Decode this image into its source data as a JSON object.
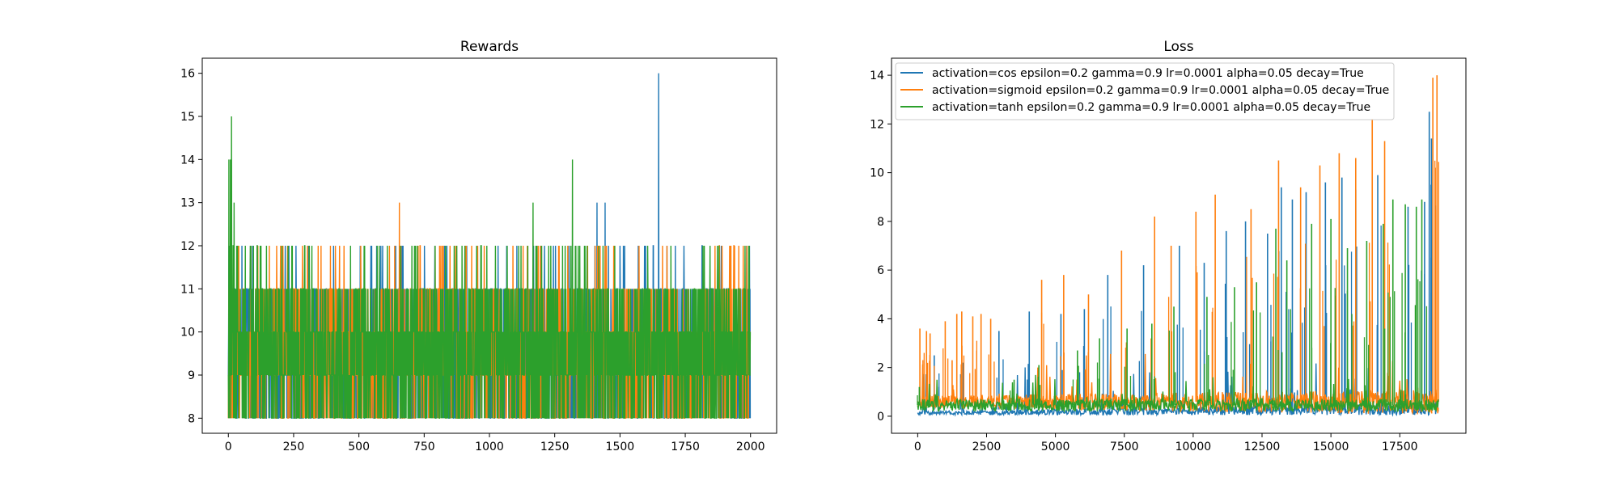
{
  "colors": {
    "cos": "#1f77b4",
    "sigmoid": "#ff7f0e",
    "tanh": "#2ca02c"
  },
  "chart_data": [
    {
      "type": "line",
      "title": "Rewards",
      "xlim": [
        -100,
        2100
      ],
      "ylim": [
        7.65,
        16.35
      ],
      "x_ticks": [
        0,
        250,
        500,
        750,
        1000,
        1250,
        1500,
        1750,
        2000
      ],
      "y_ticks": [
        8,
        9,
        10,
        11,
        12,
        13,
        14,
        15,
        16
      ],
      "n_points": 2000,
      "series": [
        {
          "key": "cos",
          "values_range": [
            8,
            16
          ],
          "peaks": [
            {
              "x": 1648,
              "y": 16
            },
            {
              "x": 1412,
              "y": 13
            },
            {
              "x": 1443,
              "y": 13
            },
            {
              "x": 1305,
              "y": 12
            },
            {
              "x": 1513,
              "y": 12
            },
            {
              "x": 1598,
              "y": 12
            },
            {
              "x": 1712,
              "y": 12
            },
            {
              "x": 1985,
              "y": 12
            }
          ]
        },
        {
          "key": "sigmoid",
          "values_range": [
            8,
            13
          ],
          "peaks": [
            {
              "x": 655,
              "y": 13
            },
            {
              "x": 40,
              "y": 12
            },
            {
              "x": 410,
              "y": 12
            },
            {
              "x": 955,
              "y": 12
            },
            {
              "x": 1405,
              "y": 12
            },
            {
              "x": 1920,
              "y": 12
            }
          ]
        },
        {
          "key": "tanh",
          "values_range": [
            8,
            15
          ],
          "peaks": [
            {
              "x": 2,
              "y": 14
            },
            {
              "x": 8,
              "y": 14
            },
            {
              "x": 12,
              "y": 15
            },
            {
              "x": 22,
              "y": 13
            },
            {
              "x": 1167,
              "y": 13
            },
            {
              "x": 1318,
              "y": 14
            },
            {
              "x": 35,
              "y": 12
            },
            {
              "x": 520,
              "y": 12
            },
            {
              "x": 875,
              "y": 12
            },
            {
              "x": 1845,
              "y": 12
            },
            {
              "x": 1995,
              "y": 12
            }
          ]
        }
      ]
    },
    {
      "type": "line",
      "title": "Loss",
      "xlim": [
        -950,
        19900
      ],
      "ylim": [
        -0.7,
        14.7
      ],
      "x_ticks": [
        0,
        2500,
        5000,
        7500,
        10000,
        12500,
        15000,
        17500
      ],
      "y_ticks": [
        0,
        2,
        4,
        6,
        8,
        10,
        12,
        14
      ],
      "n_points": 18900,
      "legend": {
        "location": "upper left",
        "entries": [
          {
            "key": "cos",
            "label": "activation=cos epsilon=0.2 gamma=0.9 lr=0.0001 alpha=0.05 decay=True"
          },
          {
            "key": "sigmoid",
            "label": "activation=sigmoid epsilon=0.2 gamma=0.9 lr=0.0001 alpha=0.05 decay=True"
          },
          {
            "key": "tanh",
            "label": "activation=tanh epsilon=0.2 gamma=0.9 lr=0.0001 alpha=0.05 decay=True"
          }
        ]
      },
      "series": [
        {
          "key": "cos",
          "name": "activation=cos epsilon=0.2 gamma=0.9 lr=0.0001 alpha=0.05 decay=True",
          "baseline": [
            0.1,
            0.45
          ],
          "peaks": [
            {
              "x": 600,
              "y": 2.5
            },
            {
              "x": 1650,
              "y": 2.2
            },
            {
              "x": 2950,
              "y": 3.5
            },
            {
              "x": 4050,
              "y": 4.3
            },
            {
              "x": 5200,
              "y": 4.2
            },
            {
              "x": 6050,
              "y": 4.4
            },
            {
              "x": 6900,
              "y": 5.8
            },
            {
              "x": 8200,
              "y": 6.2
            },
            {
              "x": 9500,
              "y": 7.0
            },
            {
              "x": 10400,
              "y": 6.3
            },
            {
              "x": 11200,
              "y": 7.6
            },
            {
              "x": 11900,
              "y": 8.0
            },
            {
              "x": 12700,
              "y": 7.5
            },
            {
              "x": 13200,
              "y": 9.4
            },
            {
              "x": 13600,
              "y": 8.9
            },
            {
              "x": 14100,
              "y": 9.2
            },
            {
              "x": 14800,
              "y": 9.6
            },
            {
              "x": 15400,
              "y": 9.8
            },
            {
              "x": 15900,
              "y": 9.3
            },
            {
              "x": 16700,
              "y": 9.9
            },
            {
              "x": 17800,
              "y": 8.6
            },
            {
              "x": 18400,
              "y": 8.8
            },
            {
              "x": 18570,
              "y": 12.5
            },
            {
              "x": 18650,
              "y": 11.4
            }
          ]
        },
        {
          "key": "sigmoid",
          "name": "activation=sigmoid epsilon=0.2 gamma=0.9 lr=0.0001 alpha=0.05 decay=True",
          "baseline": [
            0.0,
            1.2
          ],
          "peaks": [
            {
              "x": 80,
              "y": 3.6
            },
            {
              "x": 320,
              "y": 3.5
            },
            {
              "x": 450,
              "y": 3.4
            },
            {
              "x": 1000,
              "y": 3.9
            },
            {
              "x": 1250,
              "y": 2.3
            },
            {
              "x": 1420,
              "y": 4.2
            },
            {
              "x": 1600,
              "y": 4.3
            },
            {
              "x": 2000,
              "y": 4.1
            },
            {
              "x": 2300,
              "y": 4.2
            },
            {
              "x": 2650,
              "y": 4.0
            },
            {
              "x": 4500,
              "y": 5.6
            },
            {
              "x": 5300,
              "y": 5.8
            },
            {
              "x": 6200,
              "y": 5.0
            },
            {
              "x": 7400,
              "y": 6.8
            },
            {
              "x": 8600,
              "y": 8.2
            },
            {
              "x": 9200,
              "y": 7.0
            },
            {
              "x": 10100,
              "y": 8.4
            },
            {
              "x": 10800,
              "y": 9.1
            },
            {
              "x": 12100,
              "y": 8.5
            },
            {
              "x": 13100,
              "y": 10.5
            },
            {
              "x": 13900,
              "y": 9.4
            },
            {
              "x": 14600,
              "y": 10.3
            },
            {
              "x": 15300,
              "y": 10.8
            },
            {
              "x": 15900,
              "y": 10.6
            },
            {
              "x": 16500,
              "y": 12.2
            },
            {
              "x": 16950,
              "y": 11.3
            },
            {
              "x": 18700,
              "y": 13.9
            },
            {
              "x": 18850,
              "y": 14.0
            }
          ]
        },
        {
          "key": "tanh",
          "name": "activation=tanh epsilon=0.2 gamma=0.9 lr=0.0001 alpha=0.05 decay=True",
          "baseline": [
            0.2,
            0.7
          ],
          "peaks": [
            {
              "x": 60,
              "y": 1.2
            },
            {
              "x": 3500,
              "y": 1.5
            },
            {
              "x": 4400,
              "y": 2.1
            },
            {
              "x": 5800,
              "y": 2.7
            },
            {
              "x": 6600,
              "y": 3.2
            },
            {
              "x": 7600,
              "y": 3.6
            },
            {
              "x": 8500,
              "y": 3.8
            },
            {
              "x": 9300,
              "y": 4.5
            },
            {
              "x": 10500,
              "y": 4.9
            },
            {
              "x": 11500,
              "y": 5.3
            },
            {
              "x": 12300,
              "y": 5.5
            },
            {
              "x": 13000,
              "y": 7.7
            },
            {
              "x": 13400,
              "y": 6.4
            },
            {
              "x": 14300,
              "y": 7.9
            },
            {
              "x": 15000,
              "y": 8.1
            },
            {
              "x": 15600,
              "y": 6.9
            },
            {
              "x": 16300,
              "y": 7.2
            },
            {
              "x": 16900,
              "y": 7.9
            },
            {
              "x": 17250,
              "y": 8.9
            },
            {
              "x": 17700,
              "y": 8.7
            },
            {
              "x": 18100,
              "y": 8.6
            },
            {
              "x": 18300,
              "y": 8.9
            }
          ]
        }
      ]
    }
  ]
}
